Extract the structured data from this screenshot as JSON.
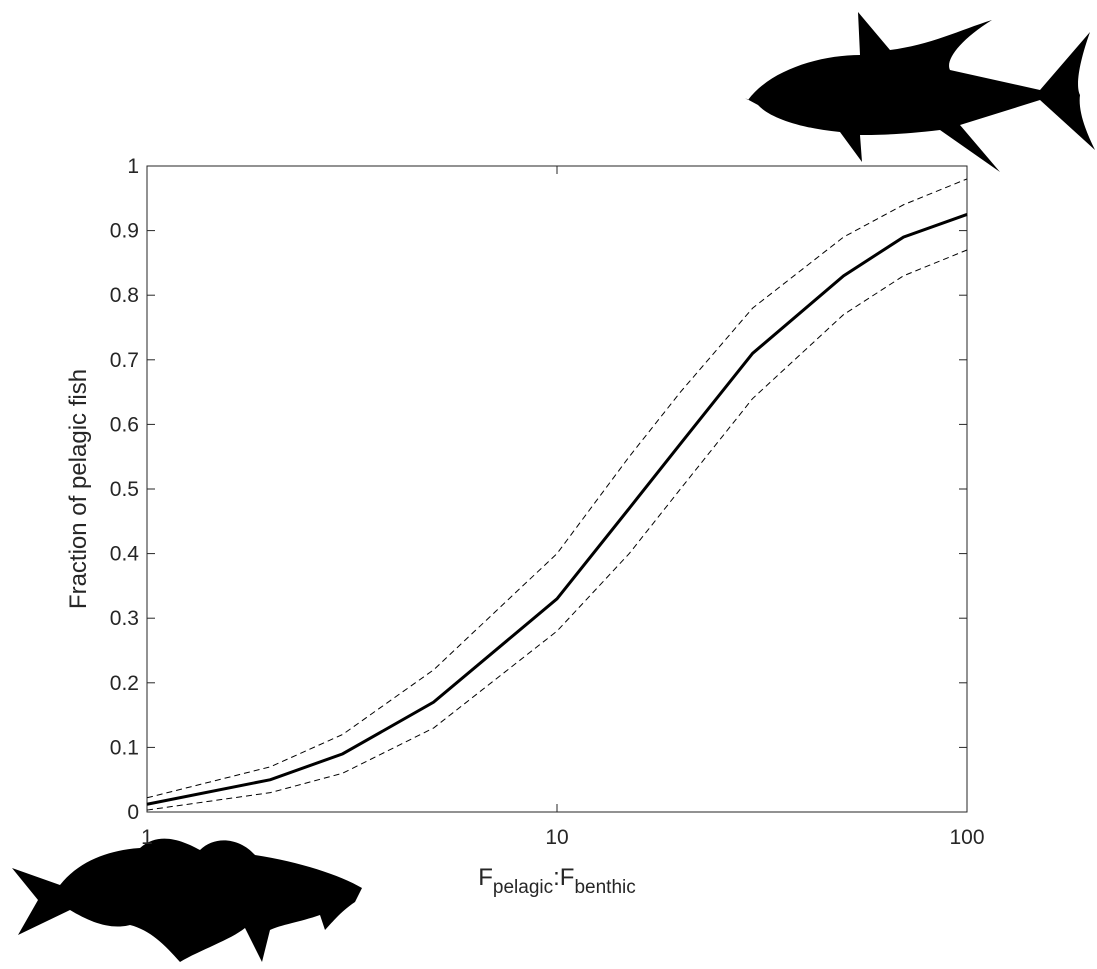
{
  "chart_data": {
    "type": "line",
    "ylabel": "Fraction of pelagic fish",
    "xlabel": [
      "F",
      "pelagic",
      ":F",
      "benthic"
    ],
    "xscale": "log",
    "x": [
      1,
      2,
      3,
      5,
      10,
      15,
      20,
      30,
      50,
      70,
      100
    ],
    "series": [
      {
        "color": "#000000",
        "style": "dashed",
        "values": [
          0.022,
          0.07,
          0.12,
          0.22,
          0.4,
          0.55,
          0.65,
          0.78,
          0.89,
          0.94,
          0.98
        ]
      },
      {
        "color": "#000000",
        "style": "solid",
        "values": [
          0.012,
          0.05,
          0.09,
          0.17,
          0.33,
          0.47,
          0.57,
          0.71,
          0.83,
          0.89,
          0.925
        ]
      },
      {
        "color": "#000000",
        "style": "dashed",
        "values": [
          0.003,
          0.03,
          0.06,
          0.13,
          0.28,
          0.4,
          0.5,
          0.64,
          0.77,
          0.83,
          0.87
        ]
      }
    ],
    "xlim": [
      1,
      100
    ],
    "xticks": [
      1,
      10,
      100
    ],
    "ylim": [
      0,
      1
    ],
    "yticks": [
      0,
      0.1,
      0.2,
      0.3,
      0.4,
      0.5,
      0.6,
      0.7,
      0.8,
      0.9,
      1
    ],
    "grid": false
  }
}
